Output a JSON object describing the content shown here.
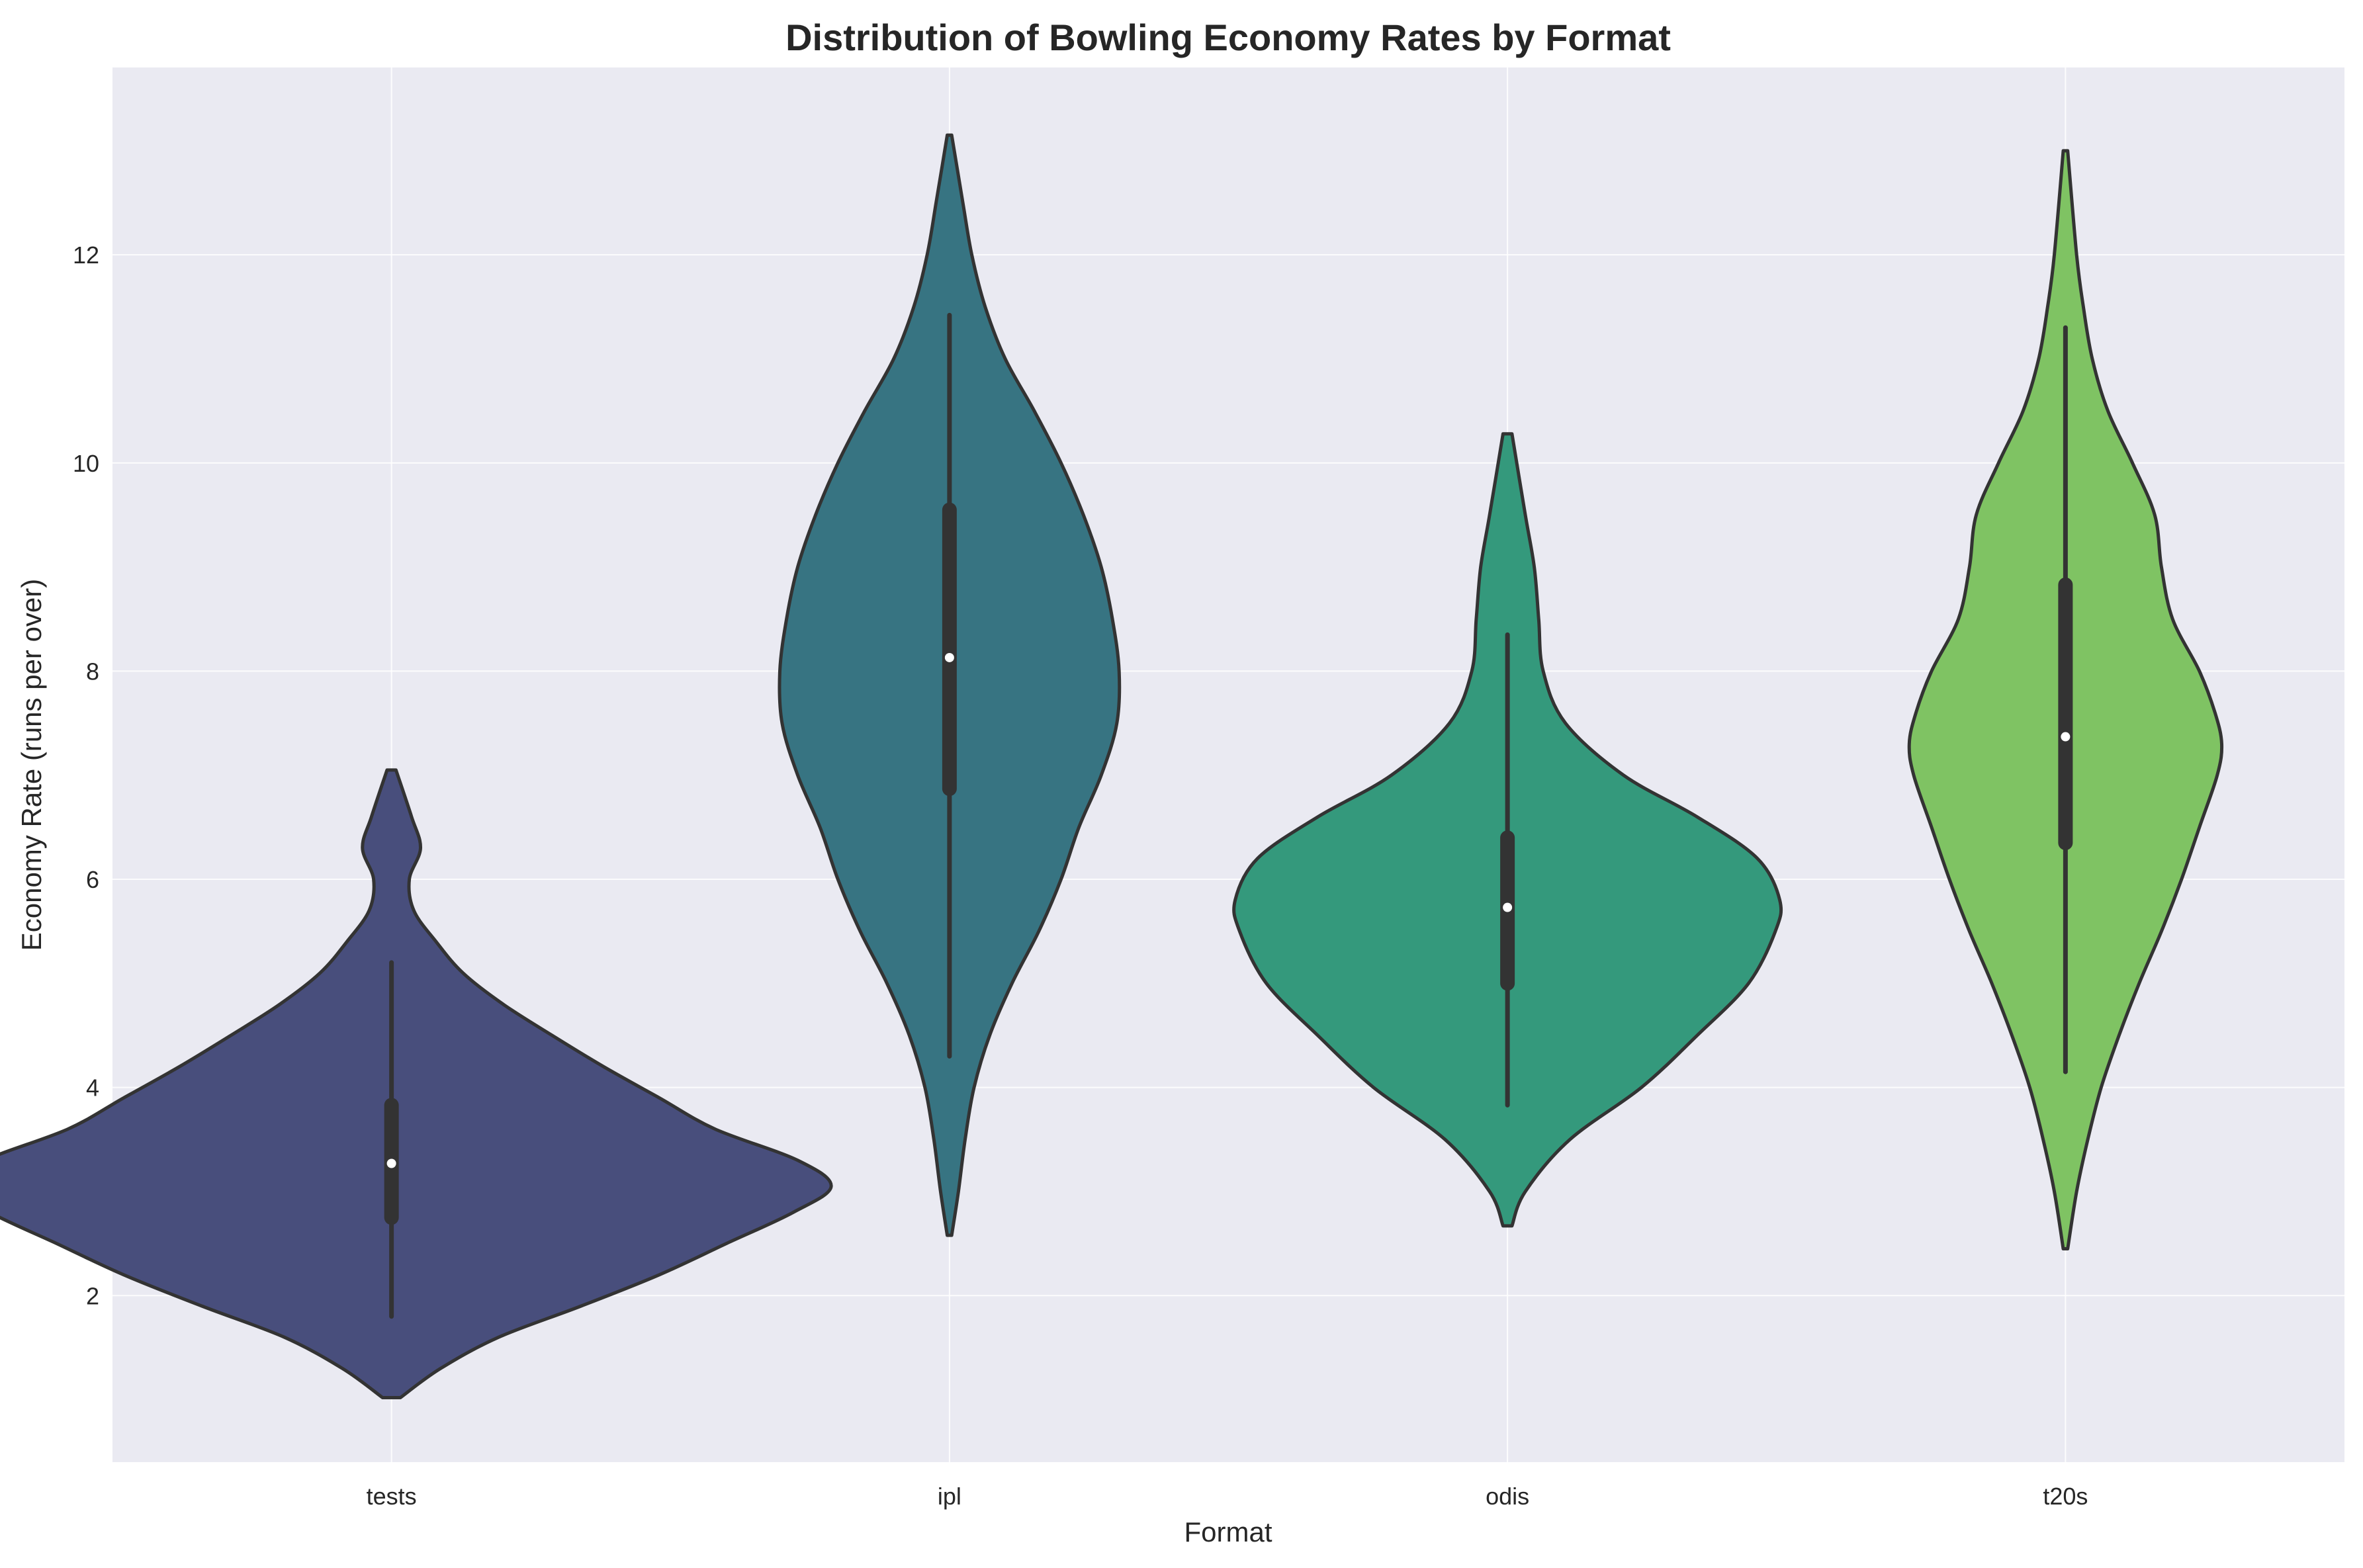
{
  "chart_data": {
    "type": "violin",
    "title": "Distribution of Bowling Economy Rates by Format",
    "xlabel": "Format",
    "ylabel": "Economy Rate (runs per over)",
    "categories": [
      "tests",
      "ipl",
      "odis",
      "t20s"
    ],
    "ylim": [
      0.4,
      13.8
    ],
    "yticks": [
      2,
      4,
      6,
      8,
      10,
      12
    ],
    "grid": true,
    "background": "#eaeaf2",
    "grid_color": "#ffffff",
    "colors": [
      "#484e7c",
      "#377482",
      "#34997c",
      "#7fc363"
    ],
    "violins": [
      {
        "category": "tests",
        "color": "#484e7c",
        "median": 3.27,
        "q1": 2.75,
        "q3": 3.83,
        "whisker_low": 1.8,
        "whisker_high": 5.2,
        "y_min": 1.02,
        "y_max": 7.05,
        "profile": [
          [
            1.02,
            0.04
          ],
          [
            1.3,
            0.22
          ],
          [
            1.6,
            0.48
          ],
          [
            1.9,
            0.85
          ],
          [
            2.2,
            1.2
          ],
          [
            2.5,
            1.5
          ],
          [
            2.8,
            1.8
          ],
          [
            3.05,
            1.97
          ],
          [
            3.3,
            1.82
          ],
          [
            3.6,
            1.45
          ],
          [
            3.9,
            1.2
          ],
          [
            4.2,
            0.95
          ],
          [
            4.5,
            0.72
          ],
          [
            4.8,
            0.5
          ],
          [
            5.1,
            0.32
          ],
          [
            5.4,
            0.2
          ],
          [
            5.7,
            0.1
          ],
          [
            6.0,
            0.08
          ],
          [
            6.3,
            0.13
          ],
          [
            6.6,
            0.09
          ],
          [
            7.05,
            0.02
          ]
        ]
      },
      {
        "category": "ipl",
        "color": "#377482",
        "median": 8.13,
        "q1": 6.87,
        "q3": 9.55,
        "whisker_low": 4.3,
        "whisker_high": 11.42,
        "y_min": 2.58,
        "y_max": 13.15,
        "profile": [
          [
            2.58,
            0.01
          ],
          [
            3.0,
            0.04
          ],
          [
            3.5,
            0.07
          ],
          [
            4.0,
            0.11
          ],
          [
            4.5,
            0.18
          ],
          [
            5.0,
            0.28
          ],
          [
            5.5,
            0.4
          ],
          [
            6.0,
            0.5
          ],
          [
            6.5,
            0.58
          ],
          [
            7.0,
            0.68
          ],
          [
            7.5,
            0.75
          ],
          [
            8.0,
            0.76
          ],
          [
            8.5,
            0.73
          ],
          [
            9.0,
            0.68
          ],
          [
            9.5,
            0.6
          ],
          [
            10.0,
            0.5
          ],
          [
            10.5,
            0.38
          ],
          [
            11.0,
            0.25
          ],
          [
            11.5,
            0.16
          ],
          [
            12.0,
            0.1
          ],
          [
            12.5,
            0.06
          ],
          [
            13.15,
            0.01
          ]
        ]
      },
      {
        "category": "odis",
        "color": "#34997c",
        "median": 5.73,
        "q1": 5.0,
        "q3": 6.4,
        "whisker_low": 3.83,
        "whisker_high": 8.35,
        "y_min": 2.67,
        "y_max": 10.28,
        "profile": [
          [
            2.67,
            0.02
          ],
          [
            3.0,
            0.08
          ],
          [
            3.5,
            0.28
          ],
          [
            4.0,
            0.6
          ],
          [
            4.5,
            0.85
          ],
          [
            5.0,
            1.08
          ],
          [
            5.5,
            1.2
          ],
          [
            5.8,
            1.22
          ],
          [
            6.2,
            1.12
          ],
          [
            6.6,
            0.85
          ],
          [
            7.0,
            0.52
          ],
          [
            7.5,
            0.26
          ],
          [
            8.0,
            0.16
          ],
          [
            8.5,
            0.14
          ],
          [
            9.0,
            0.12
          ],
          [
            9.5,
            0.08
          ],
          [
            10.28,
            0.02
          ]
        ]
      },
      {
        "category": "t20s",
        "color": "#7fc363",
        "median": 7.37,
        "q1": 6.35,
        "q3": 8.83,
        "whisker_low": 4.15,
        "whisker_high": 11.3,
        "y_min": 2.45,
        "y_max": 13.0,
        "profile": [
          [
            2.45,
            0.01
          ],
          [
            3.0,
            0.05
          ],
          [
            3.5,
            0.1
          ],
          [
            4.0,
            0.16
          ],
          [
            4.5,
            0.24
          ],
          [
            5.0,
            0.33
          ],
          [
            5.5,
            0.43
          ],
          [
            6.0,
            0.52
          ],
          [
            6.5,
            0.6
          ],
          [
            7.0,
            0.68
          ],
          [
            7.3,
            0.7
          ],
          [
            7.6,
            0.67
          ],
          [
            8.0,
            0.6
          ],
          [
            8.5,
            0.48
          ],
          [
            9.0,
            0.43
          ],
          [
            9.5,
            0.4
          ],
          [
            10.0,
            0.3
          ],
          [
            10.5,
            0.19
          ],
          [
            11.0,
            0.12
          ],
          [
            11.5,
            0.08
          ],
          [
            12.0,
            0.05
          ],
          [
            13.0,
            0.01
          ]
        ]
      }
    ]
  }
}
